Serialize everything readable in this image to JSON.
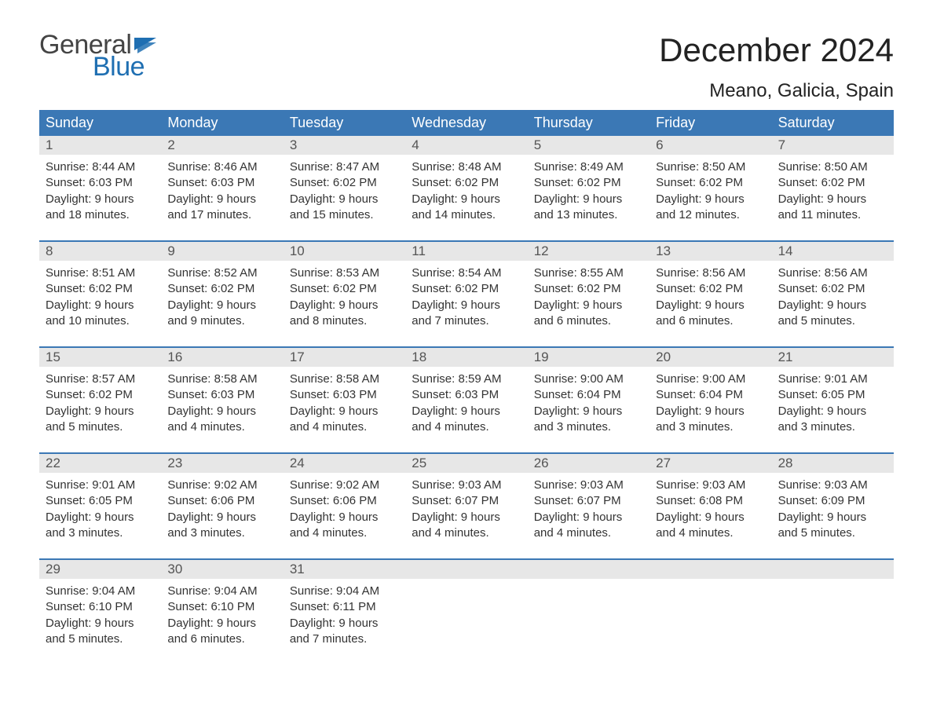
{
  "logo": {
    "text1": "General",
    "text2": "Blue",
    "flag_color": "#1f6fb2"
  },
  "title": "December 2024",
  "location": "Meano, Galicia, Spain",
  "colors": {
    "header_bg": "#3b78b5",
    "header_text": "#ffffff",
    "daynum_bg": "#e7e7e7",
    "daynum_text": "#555555",
    "border": "#3b78b5",
    "body_text": "#333333"
  },
  "weekdays": [
    "Sunday",
    "Monday",
    "Tuesday",
    "Wednesday",
    "Thursday",
    "Friday",
    "Saturday"
  ],
  "weeks": [
    [
      {
        "n": "1",
        "sr": "8:44 AM",
        "ss": "6:03 PM",
        "dl": "9 hours and 18 minutes."
      },
      {
        "n": "2",
        "sr": "8:46 AM",
        "ss": "6:03 PM",
        "dl": "9 hours and 17 minutes."
      },
      {
        "n": "3",
        "sr": "8:47 AM",
        "ss": "6:02 PM",
        "dl": "9 hours and 15 minutes."
      },
      {
        "n": "4",
        "sr": "8:48 AM",
        "ss": "6:02 PM",
        "dl": "9 hours and 14 minutes."
      },
      {
        "n": "5",
        "sr": "8:49 AM",
        "ss": "6:02 PM",
        "dl": "9 hours and 13 minutes."
      },
      {
        "n": "6",
        "sr": "8:50 AM",
        "ss": "6:02 PM",
        "dl": "9 hours and 12 minutes."
      },
      {
        "n": "7",
        "sr": "8:50 AM",
        "ss": "6:02 PM",
        "dl": "9 hours and 11 minutes."
      }
    ],
    [
      {
        "n": "8",
        "sr": "8:51 AM",
        "ss": "6:02 PM",
        "dl": "9 hours and 10 minutes."
      },
      {
        "n": "9",
        "sr": "8:52 AM",
        "ss": "6:02 PM",
        "dl": "9 hours and 9 minutes."
      },
      {
        "n": "10",
        "sr": "8:53 AM",
        "ss": "6:02 PM",
        "dl": "9 hours and 8 minutes."
      },
      {
        "n": "11",
        "sr": "8:54 AM",
        "ss": "6:02 PM",
        "dl": "9 hours and 7 minutes."
      },
      {
        "n": "12",
        "sr": "8:55 AM",
        "ss": "6:02 PM",
        "dl": "9 hours and 6 minutes."
      },
      {
        "n": "13",
        "sr": "8:56 AM",
        "ss": "6:02 PM",
        "dl": "9 hours and 6 minutes."
      },
      {
        "n": "14",
        "sr": "8:56 AM",
        "ss": "6:02 PM",
        "dl": "9 hours and 5 minutes."
      }
    ],
    [
      {
        "n": "15",
        "sr": "8:57 AM",
        "ss": "6:02 PM",
        "dl": "9 hours and 5 minutes."
      },
      {
        "n": "16",
        "sr": "8:58 AM",
        "ss": "6:03 PM",
        "dl": "9 hours and 4 minutes."
      },
      {
        "n": "17",
        "sr": "8:58 AM",
        "ss": "6:03 PM",
        "dl": "9 hours and 4 minutes."
      },
      {
        "n": "18",
        "sr": "8:59 AM",
        "ss": "6:03 PM",
        "dl": "9 hours and 4 minutes."
      },
      {
        "n": "19",
        "sr": "9:00 AM",
        "ss": "6:04 PM",
        "dl": "9 hours and 3 minutes."
      },
      {
        "n": "20",
        "sr": "9:00 AM",
        "ss": "6:04 PM",
        "dl": "9 hours and 3 minutes."
      },
      {
        "n": "21",
        "sr": "9:01 AM",
        "ss": "6:05 PM",
        "dl": "9 hours and 3 minutes."
      }
    ],
    [
      {
        "n": "22",
        "sr": "9:01 AM",
        "ss": "6:05 PM",
        "dl": "9 hours and 3 minutes."
      },
      {
        "n": "23",
        "sr": "9:02 AM",
        "ss": "6:06 PM",
        "dl": "9 hours and 3 minutes."
      },
      {
        "n": "24",
        "sr": "9:02 AM",
        "ss": "6:06 PM",
        "dl": "9 hours and 4 minutes."
      },
      {
        "n": "25",
        "sr": "9:03 AM",
        "ss": "6:07 PM",
        "dl": "9 hours and 4 minutes."
      },
      {
        "n": "26",
        "sr": "9:03 AM",
        "ss": "6:07 PM",
        "dl": "9 hours and 4 minutes."
      },
      {
        "n": "27",
        "sr": "9:03 AM",
        "ss": "6:08 PM",
        "dl": "9 hours and 4 minutes."
      },
      {
        "n": "28",
        "sr": "9:03 AM",
        "ss": "6:09 PM",
        "dl": "9 hours and 5 minutes."
      }
    ],
    [
      {
        "n": "29",
        "sr": "9:04 AM",
        "ss": "6:10 PM",
        "dl": "9 hours and 5 minutes."
      },
      {
        "n": "30",
        "sr": "9:04 AM",
        "ss": "6:10 PM",
        "dl": "9 hours and 6 minutes."
      },
      {
        "n": "31",
        "sr": "9:04 AM",
        "ss": "6:11 PM",
        "dl": "9 hours and 7 minutes."
      },
      null,
      null,
      null,
      null
    ]
  ],
  "labels": {
    "sunrise": "Sunrise: ",
    "sunset": "Sunset: ",
    "daylight": "Daylight: "
  }
}
